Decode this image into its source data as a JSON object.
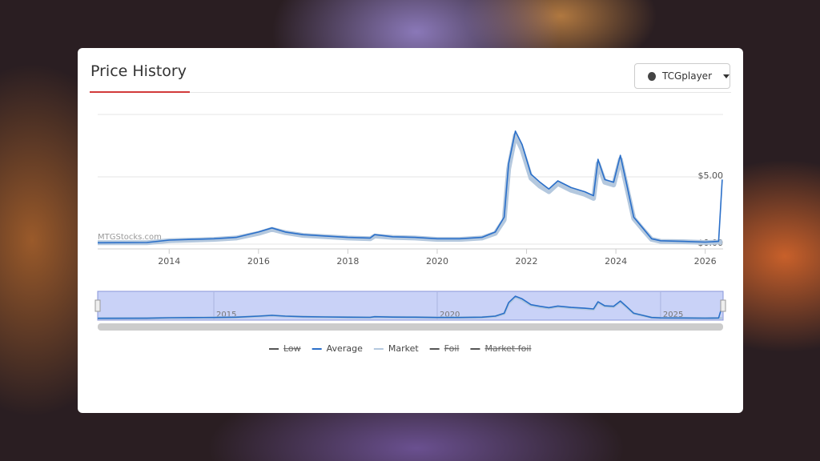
{
  "header": {
    "title": "Price History",
    "source_button": "TCGplayer"
  },
  "chart_data": {
    "type": "line",
    "watermark": "MTGStocks.com",
    "x": [
      2012.4,
      2013.5,
      2014.0,
      2014.5,
      2015.0,
      2015.5,
      2016.0,
      2016.3,
      2016.6,
      2017.0,
      2017.5,
      2018.0,
      2018.5,
      2018.6,
      2019.0,
      2019.5,
      2020.0,
      2020.5,
      2021.0,
      2021.3,
      2021.5,
      2021.6,
      2021.75,
      2021.9,
      2022.1,
      2022.3,
      2022.5,
      2022.7,
      2023.0,
      2023.3,
      2023.5,
      2023.6,
      2023.75,
      2023.95,
      2024.1,
      2024.25,
      2024.4,
      2024.6,
      2024.8,
      2025.0,
      2025.5,
      2026.0,
      2026.3,
      2026.38
    ],
    "series": [
      {
        "name": "Market",
        "color": "#b4c8de",
        "width": 6,
        "values": [
          0.1,
          0.1,
          0.25,
          0.3,
          0.35,
          0.45,
          0.8,
          1.1,
          0.85,
          0.65,
          0.55,
          0.45,
          0.4,
          0.6,
          0.5,
          0.45,
          0.35,
          0.35,
          0.45,
          0.8,
          1.8,
          5.6,
          8.1,
          7.0,
          4.9,
          4.3,
          3.9,
          4.5,
          4.0,
          3.7,
          3.4,
          6.0,
          4.6,
          4.4,
          6.3,
          4.1,
          1.9,
          1.1,
          0.35,
          0.2,
          0.18,
          0.12,
          0.15,
          0.15
        ]
      },
      {
        "name": "Average",
        "color": "#2a6fc9",
        "width": 1.6,
        "values": [
          0.1,
          0.12,
          0.3,
          0.35,
          0.4,
          0.5,
          0.9,
          1.2,
          0.9,
          0.7,
          0.6,
          0.5,
          0.45,
          0.7,
          0.55,
          0.5,
          0.4,
          0.4,
          0.5,
          0.9,
          2.0,
          6.0,
          8.4,
          7.4,
          5.2,
          4.6,
          4.1,
          4.7,
          4.2,
          3.9,
          3.6,
          6.3,
          4.8,
          4.6,
          6.6,
          4.3,
          2.0,
          1.2,
          0.4,
          0.25,
          0.2,
          0.15,
          0.2,
          4.8
        ]
      }
    ],
    "hidden_series": [
      {
        "name": "Low",
        "color": "#555555"
      },
      {
        "name": "Foil",
        "color": "#555555"
      },
      {
        "name": "Market foil",
        "color": "#555555"
      }
    ],
    "xlim": [
      2012.4,
      2026.4
    ],
    "xticks": [
      2014,
      2016,
      2018,
      2020,
      2022,
      2024,
      2026
    ],
    "ylim": [
      0,
      9.64
    ],
    "yticks": [
      {
        "value": 0,
        "label": "$0.00"
      },
      {
        "value": 5,
        "label": "$5.00"
      }
    ],
    "navigator_xticks": [
      2015,
      2020,
      2025
    ]
  }
}
